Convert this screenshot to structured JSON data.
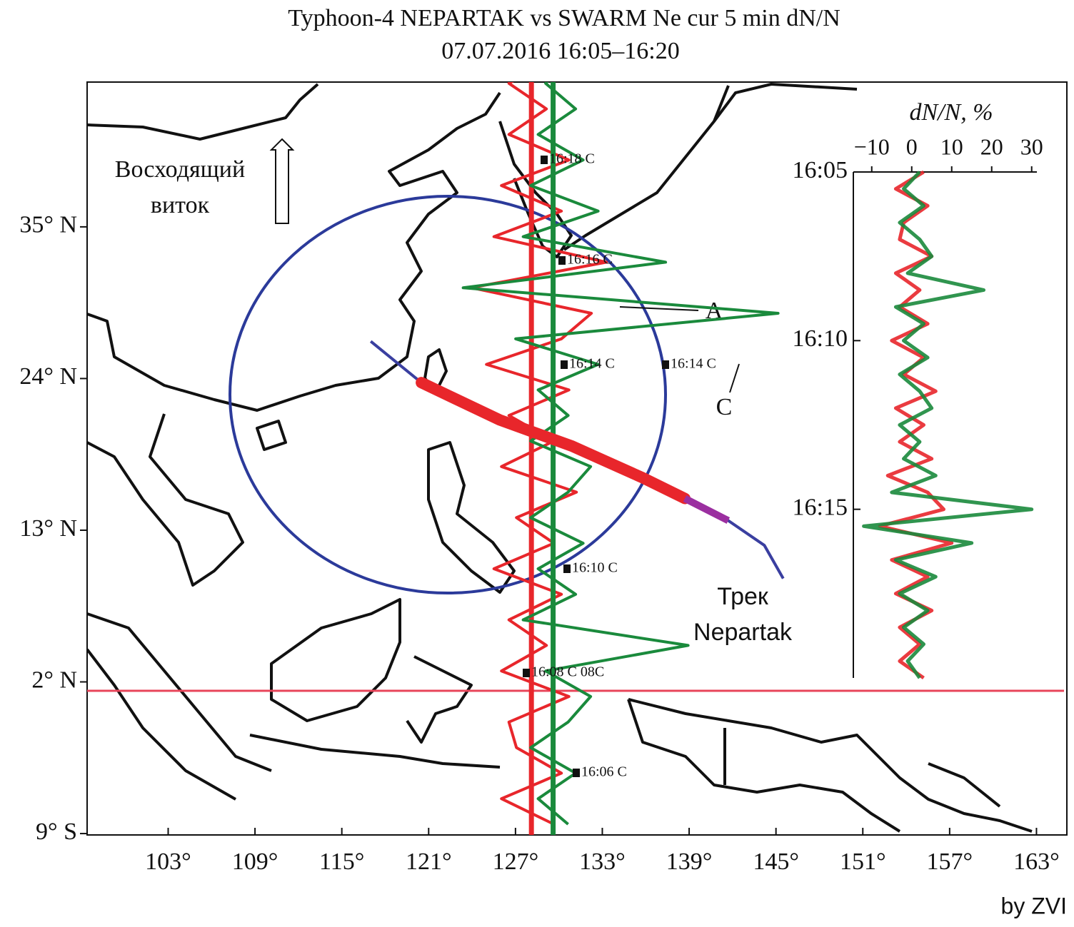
{
  "header": {
    "title": "Typhoon-4 NEPARTAK vs SWARM Ne cur 5 min dN/N",
    "subtitle": "07.07.2016 16:05–16:20"
  },
  "map": {
    "xlim": [
      97.4,
      165.1
    ],
    "ylim": [
      -9.1,
      45.5
    ],
    "xticks": [
      {
        "value": 103,
        "label": "103°"
      },
      {
        "value": 109,
        "label": "109°"
      },
      {
        "value": 115,
        "label": "115°"
      },
      {
        "value": 121,
        "label": "121°"
      },
      {
        "value": 127,
        "label": "127°"
      },
      {
        "value": 133,
        "label": "133°"
      },
      {
        "value": 139,
        "label": "139°"
      },
      {
        "value": 145,
        "label": "145°"
      },
      {
        "value": 151,
        "label": "151°"
      },
      {
        "value": 157,
        "label": "157°"
      },
      {
        "value": 163,
        "label": "163°"
      }
    ],
    "yticks": [
      {
        "value": 35,
        "label": "35° N"
      },
      {
        "value": 24,
        "label": "24° N"
      },
      {
        "value": 13,
        "label": "13° N"
      },
      {
        "value": 2,
        "label": "2° N"
      },
      {
        "value": -9,
        "label": "9° S"
      }
    ],
    "orbit_label": "Восходящий виток",
    "orbit_label_2": "виток",
    "typhoon_track": {
      "label": "Трек Nepartak",
      "lon": [
        117.0,
        120.5,
        125.9,
        130.9,
        135.8,
        138.7,
        141.7,
        144.2,
        145.5
      ],
      "lat": [
        26.7,
        23.7,
        21.0,
        19.1,
        16.8,
        15.3,
        13.7,
        11.9,
        9.5
      ]
    },
    "time_labels": [
      "16:18 C",
      "16:16 C",
      "16:14 C",
      "16:14 C",
      "16:10 C",
      "16:08 C 08C",
      "16:06 C"
    ],
    "marker_a": "A",
    "marker_c": "C",
    "traces": [
      {
        "color": "#e8262b",
        "base_lon": 128.1
      },
      {
        "color": "#1a8a3c",
        "base_lon": 129.6
      }
    ]
  },
  "inset": {
    "title": "dN/N, %",
    "xlim": [
      -14.6,
      31.3
    ],
    "xticks": [
      {
        "value": -10,
        "label": "−10"
      },
      0,
      10,
      20,
      30
    ],
    "ylim": [
      "16:05",
      "16:20"
    ],
    "yticks": [
      "16:05",
      "16:10",
      "16:15"
    ],
    "series": [
      {
        "color": "#e8262b",
        "values": [
          3,
          -4,
          4,
          -2,
          -3,
          5,
          -4,
          2,
          -3,
          4,
          -5,
          3,
          -2,
          6,
          -4,
          3,
          -3,
          5,
          -6,
          4,
          8,
          -8,
          10,
          -5,
          4,
          -4,
          5,
          -3,
          2,
          -3,
          3
        ]
      },
      {
        "color": "#1a8a3c",
        "values": [
          2,
          -2,
          3,
          -3,
          2,
          5,
          -1,
          18,
          -4,
          3,
          -2,
          4,
          -3,
          2,
          5,
          -3,
          2,
          -2,
          6,
          -5,
          30,
          -12,
          15,
          -4,
          6,
          -3,
          4,
          -2,
          3,
          -1,
          2
        ]
      }
    ]
  },
  "credit": "by ZVI"
}
